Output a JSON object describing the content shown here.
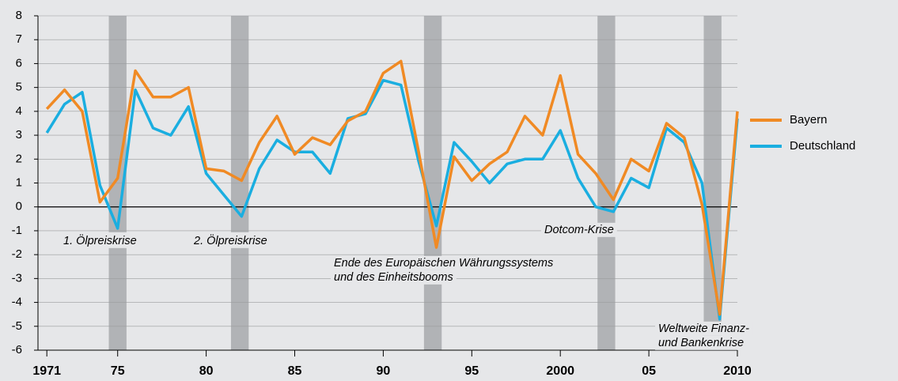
{
  "chart_data": {
    "type": "line",
    "x": [
      1971,
      1972,
      1973,
      1974,
      1975,
      1976,
      1977,
      1978,
      1979,
      1980,
      1981,
      1982,
      1983,
      1984,
      1985,
      1986,
      1987,
      1988,
      1989,
      1990,
      1991,
      1992,
      1993,
      1994,
      1995,
      1996,
      1997,
      1998,
      1999,
      2000,
      2001,
      2002,
      2003,
      2004,
      2005,
      2006,
      2007,
      2008,
      2009,
      2010
    ],
    "series": [
      {
        "name": "Bayern",
        "color": "#f08a24",
        "values": [
          4.1,
          4.9,
          4.0,
          0.2,
          1.2,
          5.7,
          4.6,
          4.6,
          5.0,
          1.6,
          1.5,
          1.1,
          2.7,
          3.8,
          2.2,
          2.9,
          2.6,
          3.6,
          4.0,
          5.6,
          6.1,
          2.3,
          -1.7,
          2.1,
          1.1,
          1.8,
          2.3,
          3.8,
          3.0,
          5.5,
          2.2,
          1.4,
          0.3,
          2.0,
          1.5,
          3.5,
          2.9,
          0.1,
          -4.5,
          4.0
        ]
      },
      {
        "name": "Deutschland",
        "color": "#1aaee0",
        "values": [
          3.1,
          4.3,
          4.8,
          0.9,
          -0.9,
          4.9,
          3.3,
          3.0,
          4.2,
          1.4,
          0.5,
          -0.4,
          1.6,
          2.8,
          2.3,
          2.3,
          1.4,
          3.7,
          3.9,
          5.3,
          5.1,
          1.9,
          -0.8,
          2.7,
          1.9,
          1.0,
          1.8,
          2.0,
          2.0,
          3.2,
          1.2,
          0.0,
          -0.2,
          1.2,
          0.8,
          3.3,
          2.7,
          1.0,
          -4.7,
          3.7
        ]
      }
    ],
    "xlim": [
      1970.5,
      2010
    ],
    "xticks": [
      1971,
      {
        "value": 1975,
        "label": "75"
      },
      {
        "value": 1980,
        "label": "80"
      },
      {
        "value": 1985,
        "label": "85"
      },
      {
        "value": 1990,
        "label": "90"
      },
      {
        "value": 1995,
        "label": "95"
      },
      2000,
      {
        "value": 2005,
        "label": "05"
      },
      2010
    ],
    "ylim": [
      -6,
      8
    ],
    "yticks": [
      -6,
      -5,
      -4,
      -3,
      -2,
      -1,
      0,
      1,
      2,
      3,
      4,
      5,
      6,
      7,
      8
    ],
    "grid": true,
    "shaded_periods": [
      [
        1974.5,
        1975.5
      ],
      [
        1981.4,
        1982.4
      ],
      [
        1992.3,
        1993.3
      ],
      [
        2002.1,
        2003.1
      ],
      [
        2008.1,
        2009.1
      ]
    ],
    "annotations": [
      [
        "1. Ölpreiskrise"
      ],
      [
        "2. Ölpreiskrise"
      ],
      [
        "Ende des Europäischen Währungssystems",
        "und des Einheitsbooms"
      ],
      [
        "Dotcom-Krise"
      ],
      [
        "Weltweite Finanz-",
        "und Bankenkrise"
      ]
    ]
  }
}
